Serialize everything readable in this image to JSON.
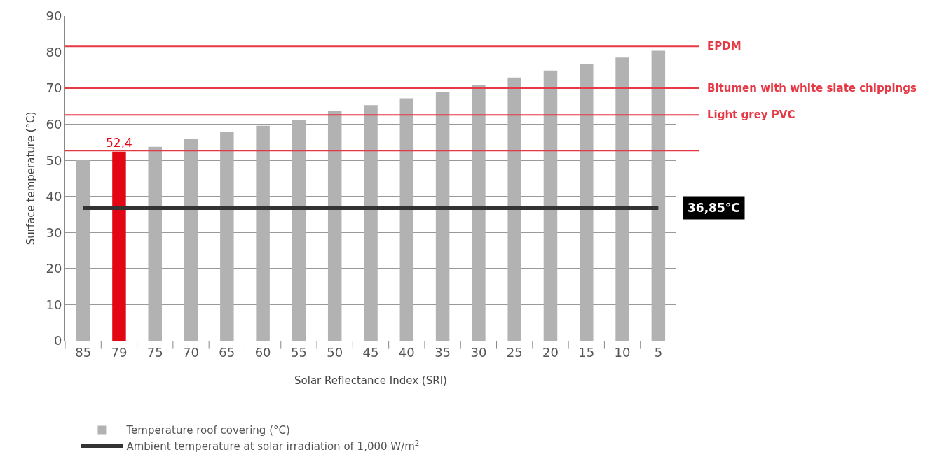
{
  "chart_data": {
    "type": "bar",
    "xlabel": "Solar Reflectance Index (SRI)",
    "ylabel": "Surface temperature (°C)",
    "categories": [
      "85",
      "79",
      "75",
      "70",
      "65",
      "60",
      "55",
      "50",
      "45",
      "40",
      "35",
      "30",
      "25",
      "20",
      "15",
      "10",
      "5"
    ],
    "series": [
      {
        "name": "Temperature roof covering (°C)",
        "color": "#b2b2b2",
        "colors": [
          "#b2b2b2",
          "#e30613",
          "#b2b2b2",
          "#b2b2b2",
          "#b2b2b2",
          "#b2b2b2",
          "#b2b2b2",
          "#b2b2b2",
          "#b2b2b2",
          "#b2b2b2",
          "#b2b2b2",
          "#b2b2b2",
          "#b2b2b2",
          "#b2b2b2",
          "#b2b2b2",
          "#b2b2b2",
          "#b2b2b2"
        ],
        "values": [
          50.2,
          52.4,
          53.8,
          55.9,
          57.8,
          59.6,
          61.3,
          63.6,
          65.3,
          67.2,
          68.9,
          70.9,
          73.0,
          74.9,
          76.8,
          78.5,
          80.4
        ],
        "value_labels": [
          null,
          "52,4",
          null,
          null,
          null,
          null,
          null,
          null,
          null,
          null,
          null,
          null,
          null,
          null,
          null,
          null,
          null
        ]
      },
      {
        "name": "Ambient temperature at solar irradiation of 1,000 W/m$^{2}$",
        "type": "line",
        "color": "#333333",
        "values": [
          36.85,
          36.85,
          36.85,
          36.85,
          36.85,
          36.85,
          36.85,
          36.85,
          36.85,
          36.85,
          36.85,
          36.85,
          36.85,
          36.85,
          36.85,
          36.85,
          36.85
        ]
      }
    ],
    "ylim": [
      0,
      90
    ],
    "yticks": [
      0,
      10,
      20,
      30,
      40,
      50,
      60,
      70,
      80,
      90
    ],
    "grid": "y",
    "legend": "bottom left",
    "ref_lines": [
      {
        "axis": "y",
        "value": 81.6,
        "label": "EPDM",
        "color": "#e63946"
      },
      {
        "axis": "y",
        "value": 70,
        "label": "Bitumen with white slate chippings",
        "color": "#e63946"
      },
      {
        "axis": "y",
        "value": 62.6,
        "label": "Light grey PVC",
        "color": "#e63946"
      },
      {
        "axis": "y",
        "value": 52.7,
        "label": null,
        "color": "#e63946"
      }
    ],
    "annotations": [
      {
        "text": "36,85°C",
        "x": "5",
        "y": 36.85
      }
    ]
  }
}
